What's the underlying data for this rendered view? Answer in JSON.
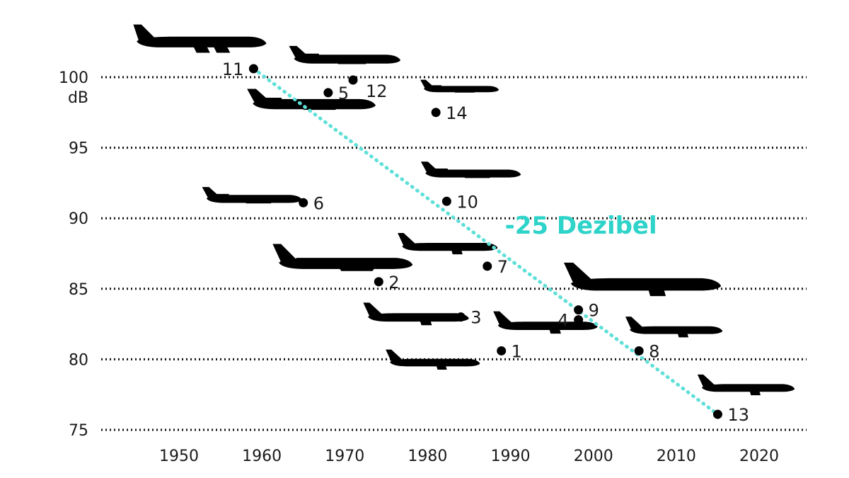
{
  "chart_data": {
    "type": "scatter",
    "title": "",
    "xlabel": "",
    "ylabel": "dB",
    "xlim": [
      1940,
      2025
    ],
    "ylim": [
      75,
      103
    ],
    "x_ticks": [
      1950,
      1960,
      1970,
      1980,
      1990,
      2000,
      2010,
      2020
    ],
    "y_ticks": [
      75,
      80,
      85,
      90,
      95,
      100
    ],
    "y_unit_label": "dB",
    "grid": true,
    "points": [
      {
        "label": "11",
        "x": 1959,
        "y": 100.6,
        "label_side": "left"
      },
      {
        "label": "12",
        "x": 1971,
        "y": 99.8,
        "label_side": "below-right"
      },
      {
        "label": "5",
        "x": 1968,
        "y": 98.9,
        "label_side": "right"
      },
      {
        "label": "14",
        "x": 1981,
        "y": 97.5,
        "label_side": "right"
      },
      {
        "label": "10",
        "x": 1982.3,
        "y": 91.2,
        "label_side": "right"
      },
      {
        "label": "6",
        "x": 1965,
        "y": 91.1,
        "label_side": "right"
      },
      {
        "label": "7",
        "x": 1987.2,
        "y": 86.6,
        "label_side": "right"
      },
      {
        "label": "2",
        "x": 1974.1,
        "y": 85.5,
        "label_side": "right"
      },
      {
        "label": "9",
        "x": 1998.2,
        "y": 83.5,
        "label_side": "right"
      },
      {
        "label": "4",
        "x": 1998.2,
        "y": 82.8,
        "label_side": "left"
      },
      {
        "label": "3",
        "x": 1984,
        "y": 83,
        "label_side": "right"
      },
      {
        "label": "1",
        "x": 1988.9,
        "y": 80.6,
        "label_side": "right"
      },
      {
        "label": "8",
        "x": 2005.5,
        "y": 80.6,
        "label_side": "right"
      },
      {
        "label": "13",
        "x": 2015,
        "y": 76.1,
        "label_side": "right"
      }
    ],
    "trend": {
      "x": [
        1959,
        2015
      ],
      "y": [
        100.6,
        76.1
      ],
      "color": "#5ee0d8"
    },
    "annotation": {
      "text": "-25 Dezibel",
      "x": 1998.5,
      "y": 89,
      "color": "#2ed3c9"
    },
    "plane_icons": [
      {
        "name": "plane-11",
        "x": 1952.6,
        "y": 102.4,
        "size": 0.95,
        "kind": "quad"
      },
      {
        "name": "plane-12",
        "x": 1970.2,
        "y": 101.2,
        "size": 0.78,
        "kind": "rear"
      },
      {
        "name": "plane-5",
        "x": 1966.2,
        "y": 98.0,
        "size": 0.9,
        "kind": "rear"
      },
      {
        "name": "plane-14",
        "x": 1984.0,
        "y": 99.1,
        "size": 0.55,
        "kind": "rear"
      },
      {
        "name": "plane-10",
        "x": 1985.4,
        "y": 93.1,
        "size": 0.7,
        "kind": "rear"
      },
      {
        "name": "plane-6",
        "x": 1959.0,
        "y": 91.3,
        "size": 0.7,
        "kind": "rear"
      },
      {
        "name": "plane-7",
        "x": 1982.6,
        "y": 87.9,
        "size": 0.7,
        "kind": "twin"
      },
      {
        "name": "plane-2",
        "x": 1970.0,
        "y": 86.7,
        "size": 0.98,
        "kind": "tri"
      },
      {
        "name": "plane-9",
        "x": 2006.2,
        "y": 85.2,
        "size": 1.1,
        "kind": "twin"
      },
      {
        "name": "plane-3",
        "x": 1978.8,
        "y": 82.9,
        "size": 0.74,
        "kind": "twin"
      },
      {
        "name": "plane-4",
        "x": 1994.4,
        "y": 82.3,
        "size": 0.73,
        "kind": "twin"
      },
      {
        "name": "plane-1",
        "x": 1980.8,
        "y": 79.7,
        "size": 0.66,
        "kind": "twin"
      },
      {
        "name": "plane-8",
        "x": 2009.9,
        "y": 82.0,
        "size": 0.68,
        "kind": "twin"
      },
      {
        "name": "plane-13",
        "x": 2018.6,
        "y": 77.9,
        "size": 0.68,
        "kind": "twin"
      }
    ]
  }
}
